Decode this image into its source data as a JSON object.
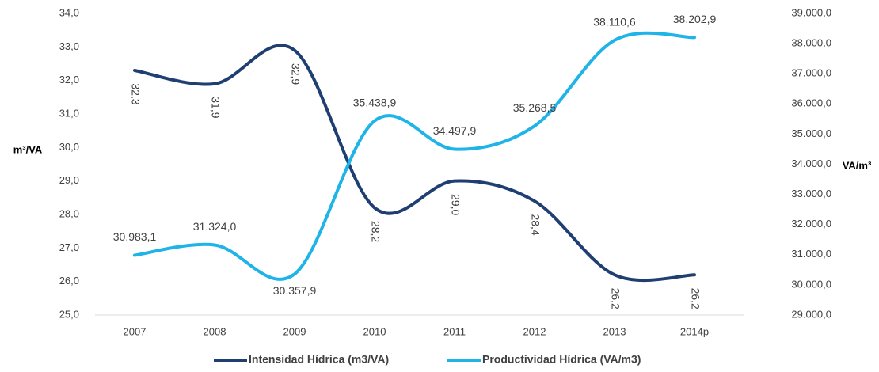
{
  "chart_data": {
    "type": "line",
    "title": "",
    "categories": [
      "2007",
      "2008",
      "2009",
      "2010",
      "2011",
      "2012",
      "2013",
      "2014p"
    ],
    "y_left": {
      "label": "m³/VA",
      "ylim": [
        25,
        34
      ],
      "ticks": [
        "25,0",
        "26,0",
        "27,0",
        "28,0",
        "29,0",
        "30,0",
        "31,0",
        "32,0",
        "33,0",
        "34,0"
      ]
    },
    "y_right": {
      "label": "VA/m³",
      "ylim": [
        29000,
        39000
      ],
      "ticks": [
        "29.000,0",
        "30.000,0",
        "31.000,0",
        "32.000,0",
        "33.000,0",
        "34.000,0",
        "35.000,0",
        "36.000,0",
        "37.000,0",
        "38.000,0",
        "39.000,0"
      ]
    },
    "series": [
      {
        "name": "Intensidad Hídrica (m3/VA)",
        "axis": "left",
        "color": "#1F3F73",
        "values": [
          32.3,
          31.9,
          32.9,
          28.2,
          29.0,
          28.4,
          26.2,
          26.2
        ],
        "labels": [
          "32,3",
          "31,9",
          "32,9",
          "28,2",
          "29,0",
          "28,4",
          "26,2",
          "26,2"
        ]
      },
      {
        "name": "Productividad Hídrica (VA/m3)",
        "axis": "right",
        "color": "#1EB4E8",
        "values": [
          30983.1,
          31324.0,
          30357.9,
          35438.9,
          34497.9,
          35268.5,
          38110.6,
          38202.9
        ],
        "labels": [
          "30.983,1",
          "31.324,0",
          "30.357,9",
          "35.438,9",
          "34.497,9",
          "35.268,5",
          "38.110,6",
          "38.202,9"
        ]
      }
    ],
    "grid": false,
    "legend_position": "bottom"
  }
}
